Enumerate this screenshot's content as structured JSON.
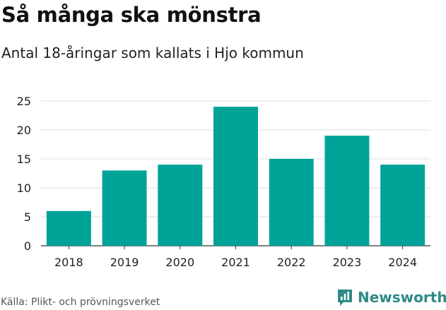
{
  "header": {
    "title": "Så många ska mönstra",
    "subtitle": "Antal 18-åringar som kallats i Hjo kommun"
  },
  "footer": {
    "source": "Källa: Plikt- och prövningsverket",
    "brand": "Newsworthy",
    "brand_icon": "bar-chart-icon"
  },
  "colors": {
    "bar": "#00a398",
    "grid": "#dddddd",
    "brand": "#2d8a86"
  },
  "chart_data": {
    "type": "bar",
    "categories": [
      "2018",
      "2019",
      "2020",
      "2021",
      "2022",
      "2023",
      "2024"
    ],
    "values": [
      6,
      13,
      14,
      24,
      15,
      19,
      14
    ],
    "ylim": [
      0,
      25
    ],
    "yticks": [
      0,
      5,
      10,
      15,
      20,
      25
    ],
    "grid": true,
    "xlabel": "",
    "ylabel": ""
  }
}
